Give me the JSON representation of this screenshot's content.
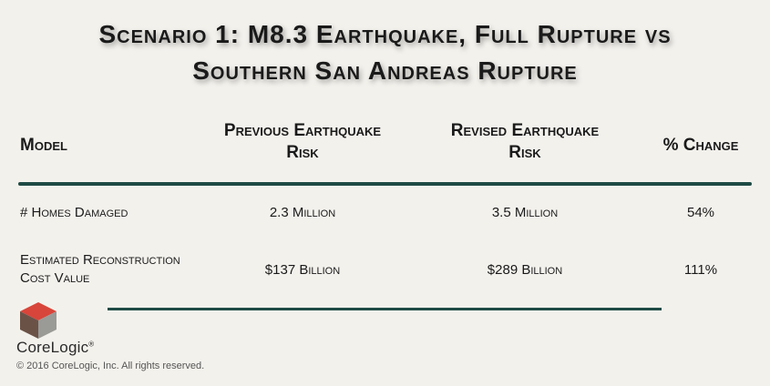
{
  "title": {
    "line1": "Scenario 1: M8.3 Earthquake, Full Rupture vs",
    "line2": "Southern San Andreas Rupture"
  },
  "table": {
    "headers": {
      "model": "Model",
      "previous_line1": "Previous Earthquake",
      "previous_line2": "Risk",
      "revised_line1": "Revised Earthquake",
      "revised_line2": "Risk",
      "change": "% Change"
    },
    "rows": [
      {
        "model": "# Homes Damaged",
        "previous": "2.3 Million",
        "revised": "3.5 Million",
        "change": "54%"
      },
      {
        "model_line1": "Estimated Reconstruction",
        "model_line2": "Cost Value",
        "previous": "$137 Billion",
        "revised": "$289 Billion",
        "change": "111%"
      }
    ]
  },
  "brand": {
    "name": "CoreLogic",
    "trademark": "®",
    "copyright": "© 2016 CoreLogic, Inc. All rights reserved."
  },
  "colors": {
    "background": "#f3f1ec",
    "rule": "#1f4b45",
    "logo_red": "#d8453a",
    "logo_brown": "#6b5247",
    "logo_gray": "#9a9a96"
  }
}
